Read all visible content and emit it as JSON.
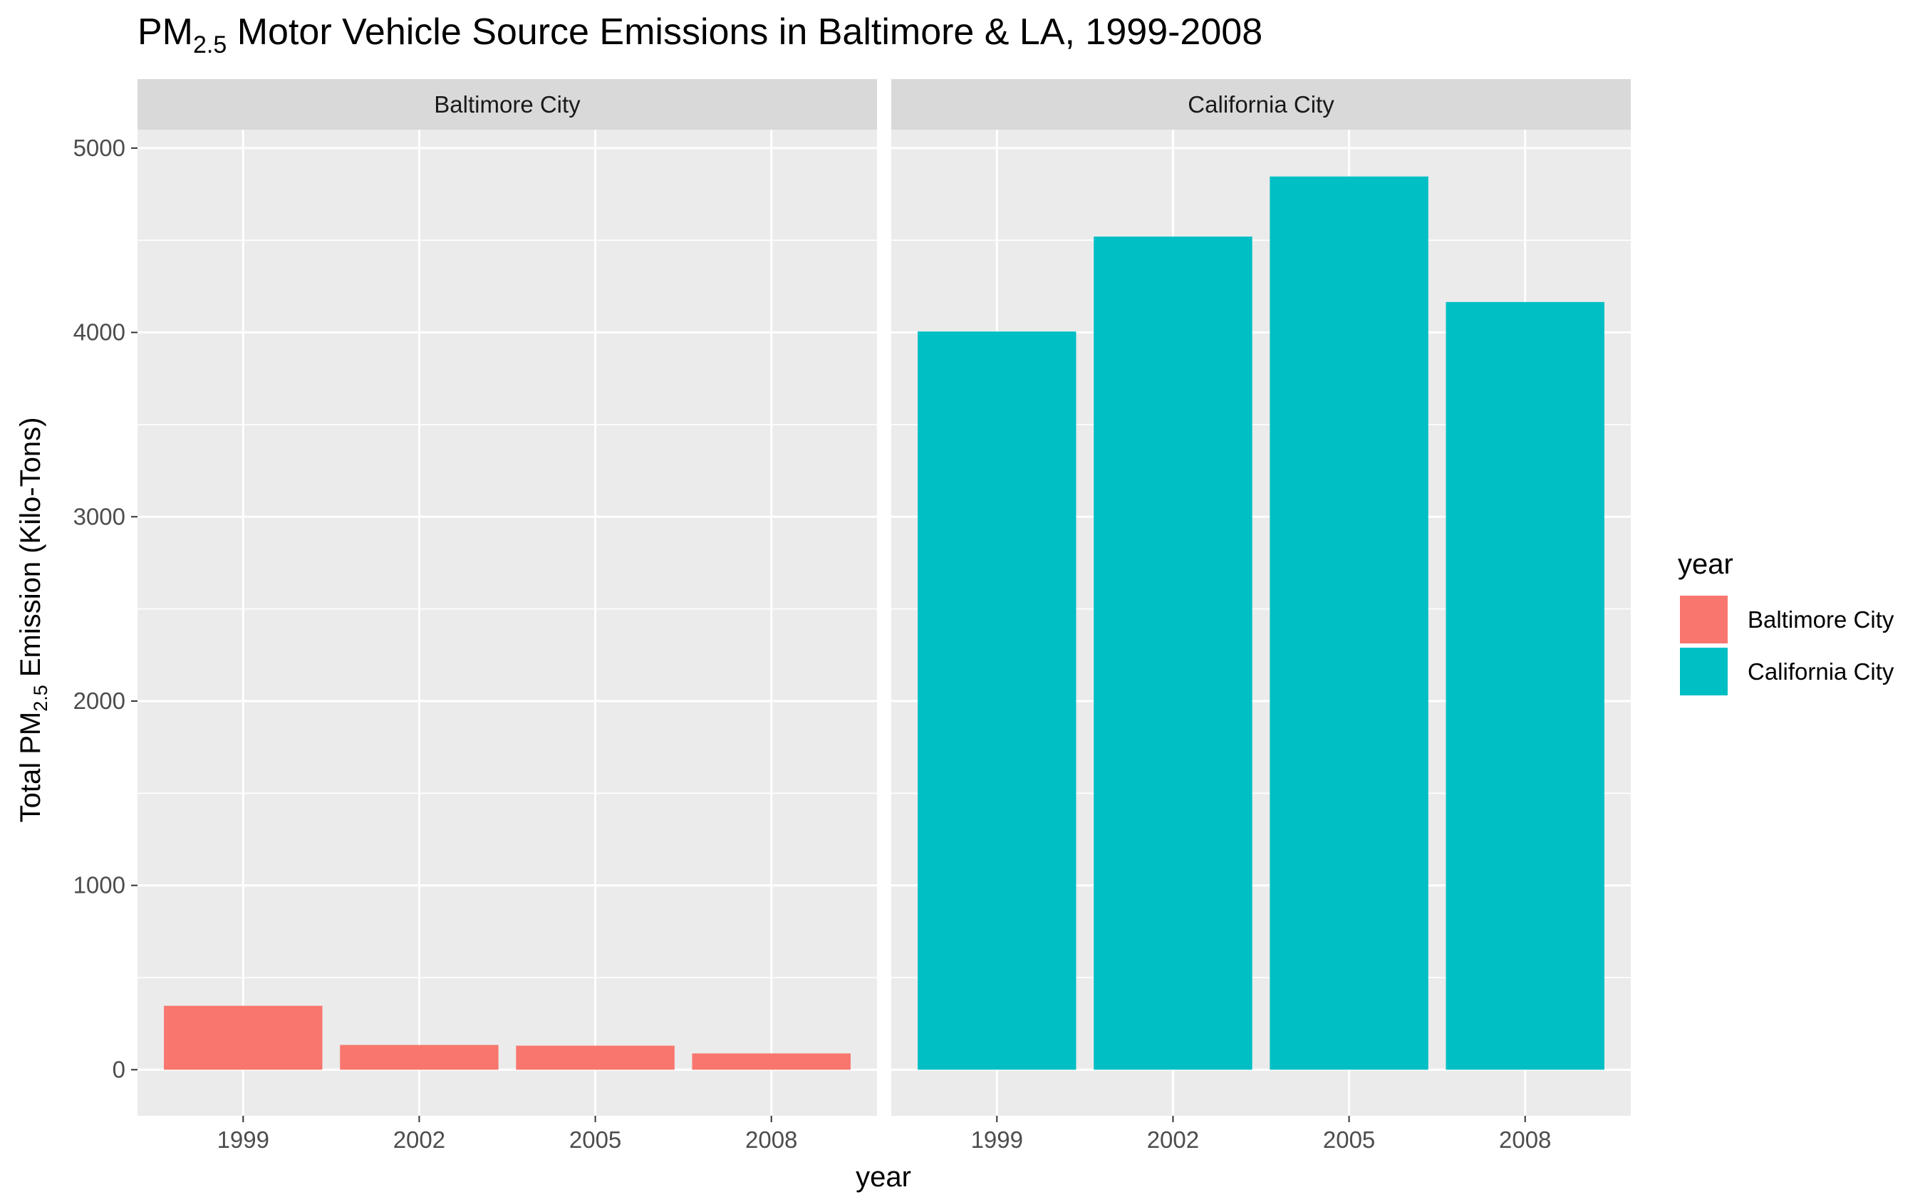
{
  "chart_data": {
    "type": "bar",
    "title_prefix": "PM",
    "title_subscript": "2.5",
    "title_suffix": " Motor Vehicle Source Emissions in Baltimore & LA, 1999-2008",
    "xlabel": "year",
    "ylabel_prefix": "Total PM",
    "ylabel_subscript": "2.5",
    "ylabel_suffix": " Emission (Kilo-Tons)",
    "categories": [
      "1999",
      "2002",
      "2005",
      "2008"
    ],
    "ylim": [
      -250,
      5100
    ],
    "y_ticks": [
      0,
      1000,
      2000,
      3000,
      4000,
      5000
    ],
    "y_tick_labels": [
      "0",
      "1000",
      "2000",
      "3000",
      "4000",
      "5000"
    ],
    "grid": true,
    "facets": [
      {
        "name": "Baltimore City",
        "color": "#F8766D",
        "values": [
          346.8,
          134.3,
          130.4,
          88.3
        ]
      },
      {
        "name": "California City",
        "color": "#00BFC4",
        "values": [
          4005,
          4520,
          4846,
          4165
        ]
      }
    ],
    "legend": {
      "title": "year",
      "placement": "right",
      "entries": [
        {
          "label": "Baltimore City",
          "color": "#F8766D"
        },
        {
          "label": "California City",
          "color": "#00BFC4"
        }
      ]
    }
  }
}
